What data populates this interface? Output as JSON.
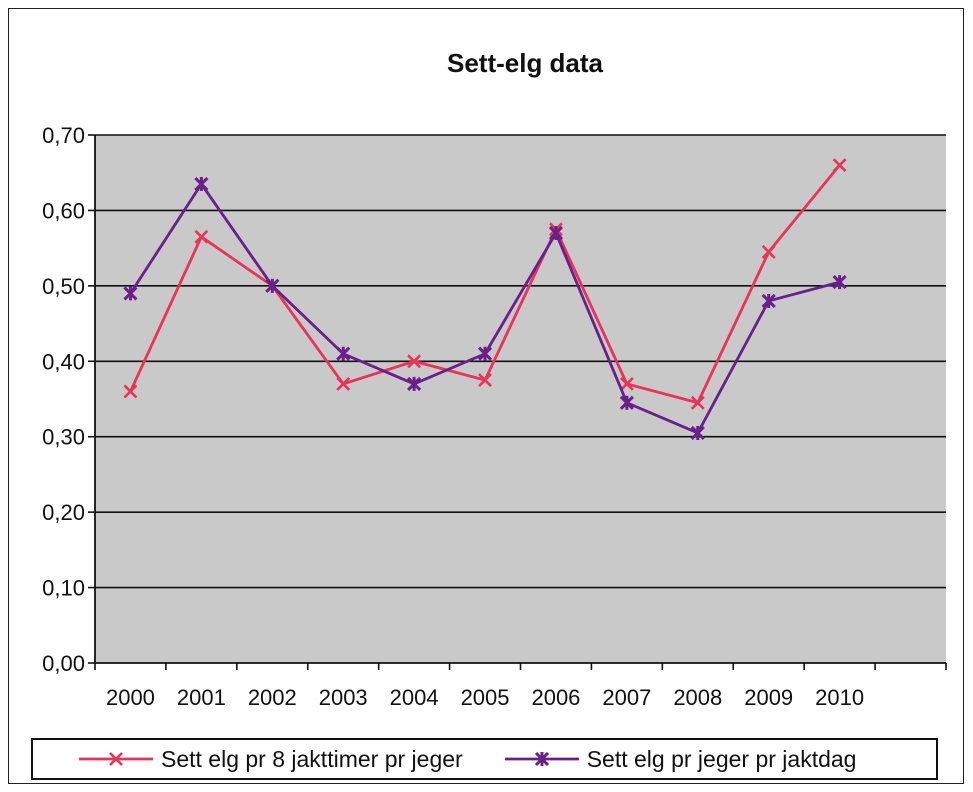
{
  "chart_data": {
    "type": "line",
    "title": "Sett-elg data",
    "xlabel": "",
    "ylabel": "",
    "categories": [
      "2000",
      "2001",
      "2002",
      "2003",
      "2004",
      "2005",
      "2006",
      "2007",
      "2008",
      "2009",
      "2010"
    ],
    "ylim": [
      0,
      0.7
    ],
    "yticks": [
      "0,00",
      "0,10",
      "0,20",
      "0,30",
      "0,40",
      "0,50",
      "0,60",
      "0,70"
    ],
    "grid": true,
    "legend_position": "bottom",
    "series": [
      {
        "name": "Sett elg pr 8 jakttimer pr jeger",
        "color": "#e8335a",
        "marker": "x",
        "values": [
          0.36,
          0.565,
          0.5,
          0.37,
          0.4,
          0.375,
          0.575,
          0.37,
          0.345,
          0.545,
          0.66
        ]
      },
      {
        "name": "Sett elg pr jeger pr jaktdag",
        "color": "#6a1f8a",
        "marker": "asterisk",
        "values": [
          0.49,
          0.635,
          0.5,
          0.41,
          0.37,
          0.41,
          0.57,
          0.345,
          0.305,
          0.48,
          0.505
        ]
      }
    ],
    "colors": {
      "plot_background": "#c9c9c9",
      "gridline": "#111111"
    }
  }
}
